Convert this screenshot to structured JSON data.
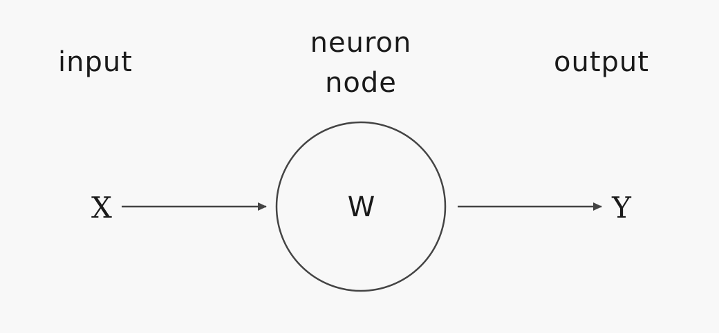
{
  "labels": {
    "input": "input",
    "neuron_line1": "neuron",
    "neuron_line2": "node",
    "output": "output"
  },
  "symbols": {
    "x": "X",
    "w": "W",
    "y": "Y"
  },
  "colors": {
    "background": "#f8f8f8",
    "ink": "#1a1a1a",
    "stroke": "#444444"
  }
}
